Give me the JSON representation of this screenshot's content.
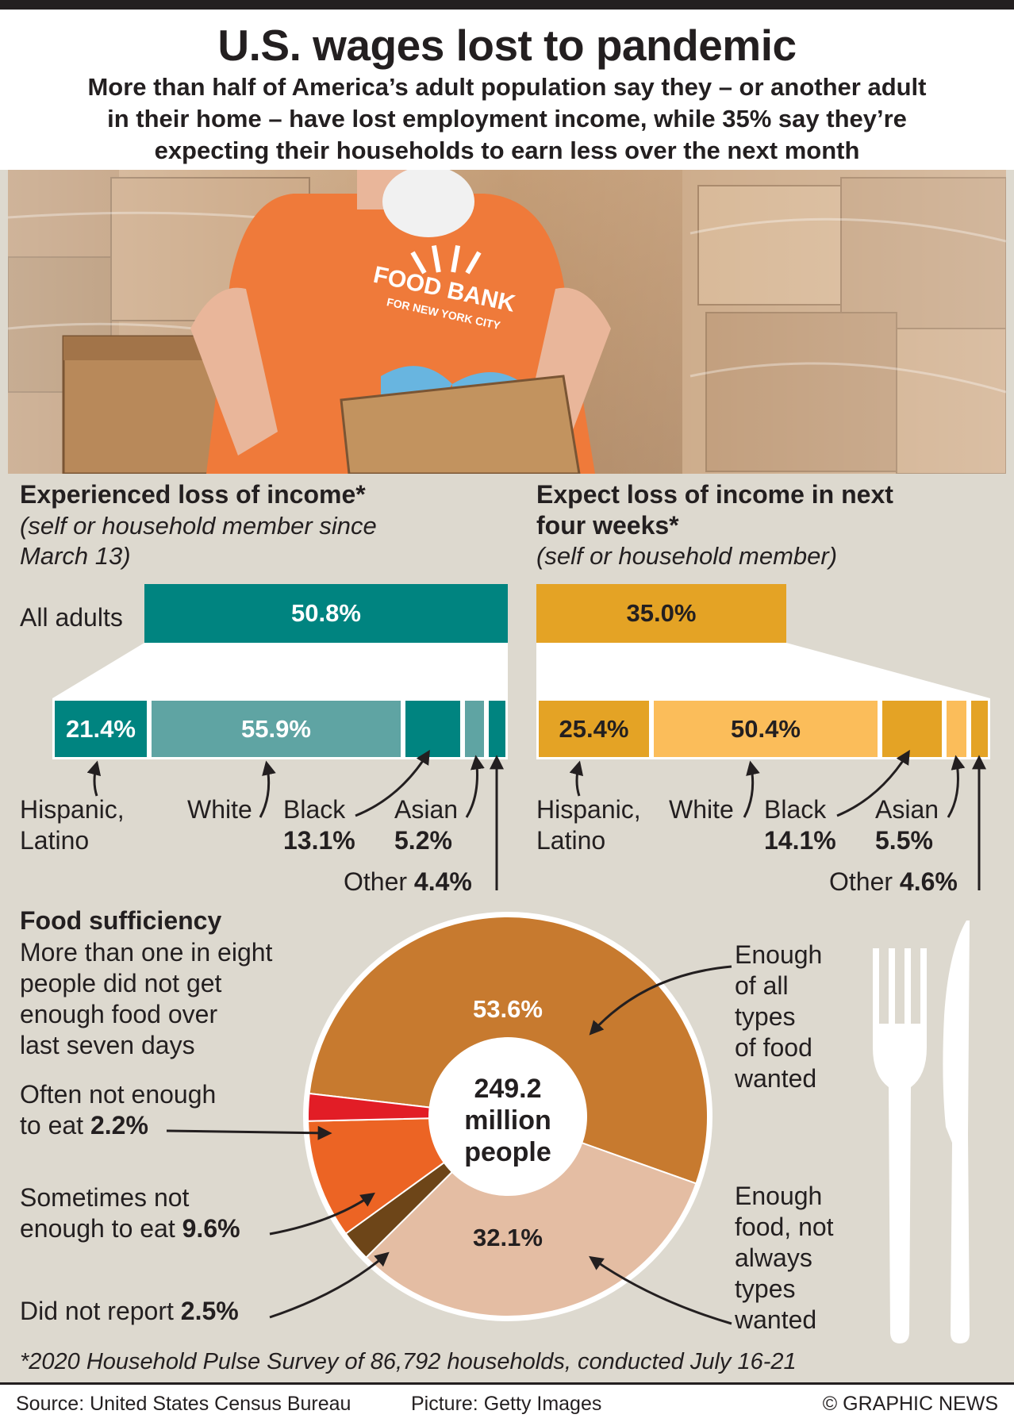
{
  "header": {
    "title": "U.S. wages lost to pandemic",
    "subtitle_lines": [
      "More than half of America’s adult population say they – or another adult",
      "in their home – have lost employment income, while 35% say they’re",
      "expecting their households to earn less over the next month"
    ]
  },
  "photo": {
    "shirt_line1": "FOOD BANK",
    "shirt_line2": "FOR NEW YORK CITY"
  },
  "left_panel": {
    "title": "Experienced loss of income*",
    "note_lines": [
      "(self or household member since",
      "March 13)"
    ],
    "all_label": "All adults",
    "all_value_label": "50.8%",
    "segment_labels": {
      "hispanic": "21.4%",
      "white": "55.9%",
      "hispanic_name_1": "Hispanic,",
      "hispanic_name_2": "Latino",
      "white_name": "White",
      "black_name": "Black",
      "black_value": "13.1%",
      "asian_name": "Asian",
      "asian_value": "5.2%",
      "other_name": "Other",
      "other_value": "4.4%"
    }
  },
  "right_panel": {
    "title_lines": [
      "Expect loss of income in next",
      "four weeks*"
    ],
    "note": "(self or household member)",
    "all_value_label": "35.0%",
    "segment_labels": {
      "hispanic": "25.4%",
      "white": "50.4%",
      "hispanic_name_1": "Hispanic,",
      "hispanic_name_2": "Latino",
      "white_name": "White",
      "black_name": "Black",
      "black_value": "14.1%",
      "asian_name": "Asian",
      "asian_value": "5.5%",
      "other_name": "Other",
      "other_value": "4.6%"
    }
  },
  "food": {
    "title": "Food sufficiency",
    "desc_lines": [
      "More than one in eight",
      "people did not get",
      "enough food over",
      "last seven days"
    ],
    "center_lines": [
      "249.2",
      "million",
      "people"
    ],
    "slice_label_enough": "53.6%",
    "slice_label_notalways": "32.1%",
    "label_enough_lines": [
      "Enough",
      "of all",
      "types",
      "of food",
      "wanted"
    ],
    "label_notalways_lines": [
      "Enough",
      "food, not",
      "always",
      "types",
      "wanted"
    ],
    "label_often_1": "Often not enough",
    "label_often_2": "to eat ",
    "label_often_value": "2.2%",
    "label_sometimes_1": "Sometimes not",
    "label_sometimes_2": "enough to eat ",
    "label_sometimes_value": "9.6%",
    "label_didnot": "Did not report ",
    "label_didnot_value": "2.5%"
  },
  "footnote": "*2020 Household Pulse Survey of 86,792 households, conducted July 16-21",
  "footer": {
    "source": "Source: United States Census Bureau",
    "picture": "Picture: Getty Images",
    "credit": "© GRAPHIC NEWS"
  },
  "colors": {
    "teal": "#008480",
    "teal_light": "#5fa4a3",
    "amber": "#e4a325",
    "amber_light": "#fbbd5a",
    "pie_enough": "#c77a2f",
    "pie_notalways": "#e4bda3",
    "pie_often": "#e21d26",
    "pie_sometimes": "#ec6424",
    "pie_didnot": "#6d4518"
  },
  "chart_data": [
    {
      "type": "bar",
      "title": "Experienced loss of income*",
      "categories": [
        "All adults"
      ],
      "values": [
        50.8
      ],
      "unit": "%"
    },
    {
      "type": "bar",
      "title": "Experienced loss of income*",
      "stacked": true,
      "categories": [
        "Hispanic, Latino",
        "White",
        "Black",
        "Asian",
        "Other"
      ],
      "values": [
        21.4,
        55.9,
        13.1,
        5.2,
        4.4
      ],
      "unit": "%"
    },
    {
      "type": "bar",
      "title": "Expect loss of income in next four weeks*",
      "categories": [
        "All adults"
      ],
      "values": [
        35.0
      ],
      "unit": "%"
    },
    {
      "type": "bar",
      "title": "Expect loss of income in next four weeks*",
      "stacked": true,
      "categories": [
        "Hispanic, Latino",
        "White",
        "Black",
        "Asian",
        "Other"
      ],
      "values": [
        25.4,
        50.4,
        14.1,
        5.5,
        4.6
      ],
      "unit": "%"
    },
    {
      "type": "pie",
      "title": "Food sufficiency",
      "total": "249.2 million people",
      "categories": [
        "Enough of all types of food wanted",
        "Enough food, not always types wanted",
        "Did not report",
        "Sometimes not enough to eat",
        "Often not enough to eat"
      ],
      "values": [
        53.6,
        32.1,
        2.5,
        9.6,
        2.2
      ],
      "unit": "%"
    }
  ]
}
